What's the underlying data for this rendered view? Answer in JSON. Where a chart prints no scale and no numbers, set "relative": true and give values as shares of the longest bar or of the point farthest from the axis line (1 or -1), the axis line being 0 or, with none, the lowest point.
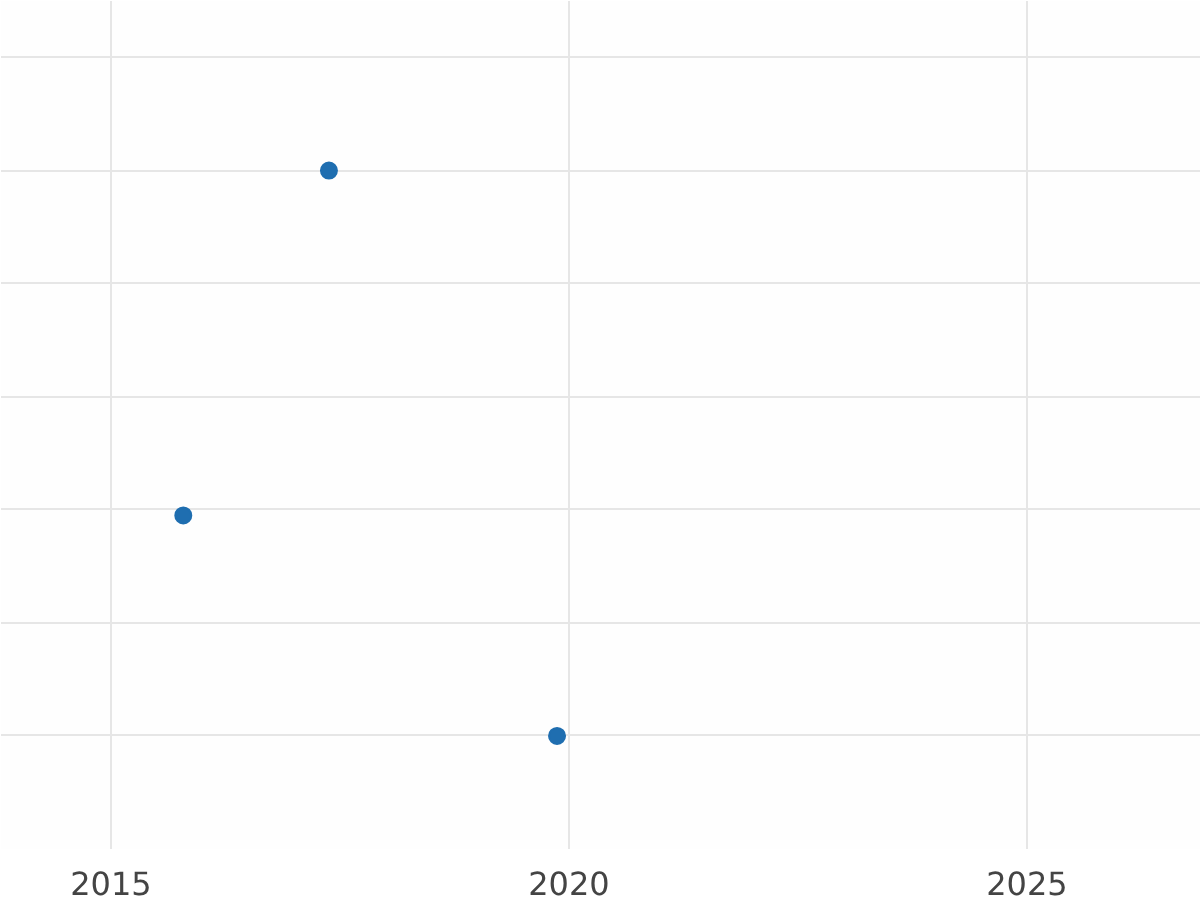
{
  "chart_data": {
    "type": "scatter",
    "relative": true,
    "x": [
      2015.79,
      2017.38,
      2019.87
    ],
    "series": [
      {
        "color": "#1f6eb0",
        "values": [
          0.39,
          1,
          0
        ]
      }
    ],
    "xlim": [
      2013.8,
      2026.9
    ],
    "xticks": [
      2015,
      2020,
      2025
    ],
    "grid": true,
    "marker": "circle",
    "tick_labels": "x"
  }
}
